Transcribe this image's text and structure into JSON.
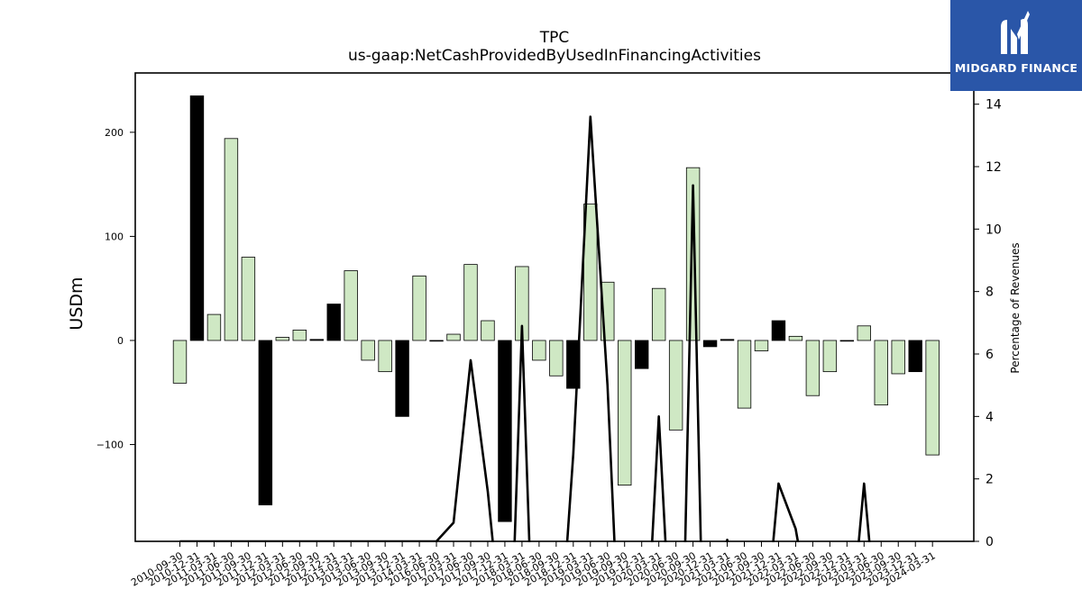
{
  "chart_data": {
    "type": "bar",
    "title": "TPC",
    "subtitle": "us-gaap:NetCashProvidedByUsedInFinancingActivities",
    "ylabel": "USDm",
    "y2label": "Percentage of Revenues",
    "ylim": [
      -193,
      257
    ],
    "y2lim": [
      0,
      15
    ],
    "yticks": [
      -100,
      0,
      100,
      200
    ],
    "y2ticks": [
      0,
      2,
      4,
      6,
      8,
      10,
      12,
      14
    ],
    "categories": [
      "2010-09-30",
      "2010-12-31",
      "2011-03-31",
      "2011-06-30",
      "2011-09-30",
      "2011-12-31",
      "2012-03-31",
      "2012-06-30",
      "2012-09-30",
      "2012-12-31",
      "2013-03-31",
      "2013-06-30",
      "2013-09-30",
      "2013-12-31",
      "2014-03-31",
      "2016-06-30",
      "2017-03-31",
      "2017-06-30",
      "2017-09-30",
      "2017-12-31",
      "2018-03-31",
      "2018-06-30",
      "2018-09-30",
      "2018-12-31",
      "2019-03-31",
      "2019-06-30",
      "2019-09-30",
      "2019-12-31",
      "2020-03-31",
      "2020-06-30",
      "2020-09-30",
      "2020-12-31",
      "2021-03-31",
      "2021-06-30",
      "2021-09-30",
      "2021-12-31",
      "2022-03-31",
      "2022-06-30",
      "2022-09-30",
      "2022-12-31",
      "2023-03-31",
      "2023-06-30",
      "2023-09-30",
      "2023-12-31",
      "2024-03-31"
    ],
    "series": [
      {
        "type": "bar",
        "values": [
          -41,
          235,
          25,
          194,
          80,
          -158,
          3,
          10,
          1,
          35,
          67,
          -19,
          -30,
          -73,
          62,
          0,
          6,
          73,
          19,
          -174,
          71,
          -19,
          -34,
          -46,
          131,
          56,
          -139,
          -27,
          50,
          -86,
          166,
          -6,
          1,
          -65,
          -10,
          19,
          4,
          -53,
          -30,
          0,
          14,
          -62,
          -32,
          -30,
          -110
        ],
        "colors": [
          "light",
          "dark",
          "light",
          "light",
          "light",
          "dark",
          "light",
          "light",
          "dark",
          "dark",
          "light",
          "light",
          "light",
          "dark",
          "light",
          "dark",
          "light",
          "light",
          "light",
          "dark",
          "light",
          "light",
          "light",
          "dark",
          "light",
          "light",
          "light",
          "dark",
          "light",
          "light",
          "light",
          "dark",
          "dark",
          "light",
          "light",
          "dark",
          "light",
          "light",
          "light",
          "dark",
          "light",
          "light",
          "light",
          "dark",
          "light"
        ]
      },
      {
        "type": "line",
        "axis": "right",
        "values": [
          0,
          0,
          0,
          0,
          0,
          0,
          0,
          0,
          0,
          0,
          0,
          0,
          0,
          0,
          0,
          0,
          0.6,
          5.8,
          1.6,
          null,
          6.9,
          null,
          null,
          2.8,
          13.6,
          5.0,
          null,
          null,
          4.0,
          null,
          11.4,
          null,
          0.05,
          null,
          null,
          1.85,
          0.4,
          null,
          null,
          null,
          1.85,
          null,
          null,
          null,
          null
        ]
      }
    ]
  },
  "colors": {
    "bar_light": "#cfe8c4",
    "bar_dark": "#000000",
    "line": "#000000"
  },
  "logo": {
    "text": "MIDGARD FINANCE",
    "icon": "midgard-logo-icon"
  }
}
